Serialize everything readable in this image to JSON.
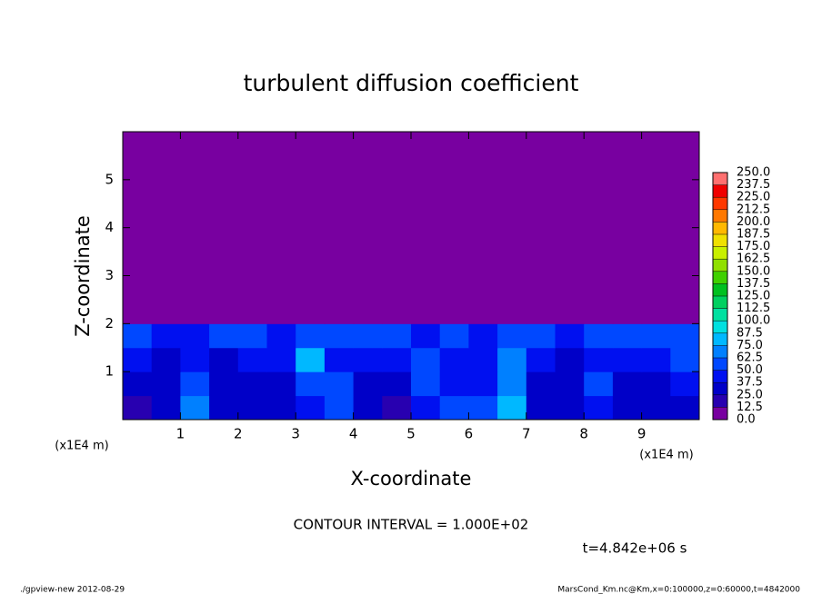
{
  "chart_data": {
    "type": "heatmap",
    "title": "turbulent diffusion coefficient",
    "x_label": "X-coordinate",
    "y_label": "Z-coordinate",
    "x_unit_labels": [
      "(x1E4 m)",
      "(x1E4 m)"
    ],
    "annotations": [
      "CONTOUR INTERVAL = 1.000E+02",
      "t=4.842e+06 s"
    ],
    "footer_left": "./gpview-new  2012-08-29",
    "footer_right": "MarsCond_Km.nc@Km,x=0:100000,z=0:60000,t=4842000",
    "xlim": [
      0,
      10
    ],
    "ylim": [
      0,
      6
    ],
    "xticks": [
      1,
      2,
      3,
      4,
      5,
      6,
      7,
      8,
      9
    ],
    "yticks": [
      1,
      2,
      3,
      4,
      5
    ],
    "x_edges": [
      0,
      0.5,
      1,
      1.5,
      2,
      2.5,
      3,
      3.5,
      4,
      4.5,
      5,
      5.5,
      6,
      6.5,
      7,
      7.5,
      8,
      8.5,
      9,
      9.5,
      10
    ],
    "y_edges": [
      0,
      0.5,
      1,
      1.5,
      2,
      6
    ],
    "z": [
      [
        20,
        30,
        65,
        35,
        25,
        25,
        45,
        60,
        30,
        20,
        40,
        50,
        55,
        75,
        30,
        25,
        45,
        30,
        25,
        35
      ],
      [
        25,
        35,
        60,
        30,
        25,
        30,
        55,
        55,
        30,
        35,
        55,
        45,
        45,
        70,
        30,
        30,
        50,
        35,
        30,
        40
      ],
      [
        40,
        35,
        45,
        35,
        40,
        40,
        80,
        45,
        40,
        45,
        50,
        45,
        40,
        65,
        40,
        35,
        45,
        40,
        45,
        50
      ],
      [
        50,
        45,
        45,
        50,
        55,
        45,
        60,
        50,
        55,
        50,
        45,
        50,
        45,
        55,
        50,
        45,
        50,
        50,
        55,
        55
      ],
      [
        0,
        0,
        0,
        0,
        0,
        0,
        0,
        0,
        0,
        0,
        0,
        0,
        0,
        0,
        0,
        0,
        0,
        0,
        0,
        0
      ]
    ],
    "colorbar": {
      "levels": [
        {
          "value": 0,
          "label": "0.0"
        },
        {
          "value": 12.5,
          "label": "12.5"
        },
        {
          "value": 25,
          "label": "25.0"
        },
        {
          "value": 37.5,
          "label": "37.5"
        },
        {
          "value": 50,
          "label": "50.0"
        },
        {
          "value": 62.5,
          "label": "62.5"
        },
        {
          "value": 75,
          "label": "75.0"
        },
        {
          "value": 87.5,
          "label": "87.5"
        },
        {
          "value": 100,
          "label": "100.0"
        },
        {
          "value": 112.5,
          "label": "112.5"
        },
        {
          "value": 125,
          "label": "125.0"
        },
        {
          "value": 137.5,
          "label": "137.5"
        },
        {
          "value": 150,
          "label": "150.0"
        },
        {
          "value": 162.5,
          "label": "162.5"
        },
        {
          "value": 175,
          "label": "175.0"
        },
        {
          "value": 187.5,
          "label": "187.5"
        },
        {
          "value": 200,
          "label": "200.0"
        },
        {
          "value": 212.5,
          "label": "212.5"
        },
        {
          "value": 225,
          "label": "225.0"
        },
        {
          "value": 237.5,
          "label": "237.5"
        },
        {
          "value": 250,
          "label": "250.0"
        }
      ],
      "colors": [
        "#7800a0",
        "#2800b0",
        "#0000c8",
        "#0010f0",
        "#0048ff",
        "#0080ff",
        "#00b8ff",
        "#00e0e0",
        "#00e0a0",
        "#00d060",
        "#00c020",
        "#40d000",
        "#90e000",
        "#c8f000",
        "#f0e000",
        "#ffb800",
        "#ff7800",
        "#ff3800",
        "#f00000",
        "#ff7070"
      ]
    }
  }
}
